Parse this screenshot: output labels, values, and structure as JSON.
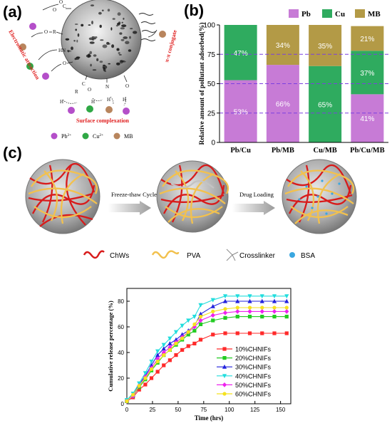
{
  "panel_a": {
    "label": "(a)",
    "mechanisms": {
      "electrostatic": "Electrostatic attraction",
      "pi": "π-π conjugate",
      "surface": "Surface complexation"
    },
    "groups": [
      "O",
      "C",
      "O",
      "O",
      "R",
      "HN",
      "O",
      "C",
      "O",
      "R",
      "H",
      "N",
      "H",
      "O",
      "H",
      "H"
    ],
    "legend": [
      "Pb",
      "Cu",
      "MB"
    ],
    "legend_sup": [
      "2+",
      "2+",
      ""
    ],
    "colors": {
      "pb": "#b44fc9",
      "cu": "#2fa845",
      "mb": "#b8855d",
      "mech": "#e02020"
    }
  },
  "panel_b_label": "(b)",
  "panel_c": {
    "label": "(c)",
    "step1": "Freeze-thaw Cycle",
    "step2": "Drug Loading",
    "legend": [
      "ChWs",
      "PVA",
      "Crosslinker",
      "BSA"
    ]
  },
  "chart_data": [
    {
      "type": "bar",
      "stacked": true,
      "categories": [
        "Pb/Cu",
        "Pb/MB",
        "Cu/MB",
        "Pb/Cu/MB"
      ],
      "series": [
        {
          "name": "Pb",
          "values": [
            53,
            66,
            0,
            41
          ],
          "labels": [
            "53%",
            "66%",
            "",
            "41%"
          ],
          "color": "#c77bd6"
        },
        {
          "name": "Cu",
          "values": [
            47,
            0,
            65,
            37
          ],
          "labels": [
            "47%",
            "",
            "65%",
            "37%"
          ],
          "color": "#2fab5f"
        },
        {
          "name": "MB",
          "values": [
            0,
            34,
            35,
            21
          ],
          "labels": [
            "",
            "34%",
            "35%",
            "21%"
          ],
          "color": "#b39a46"
        }
      ],
      "ylabel": "Relative amount of pollutant adsorbed(%)",
      "ylim": [
        0,
        100
      ],
      "yticks": [
        0,
        25,
        50,
        75,
        100
      ],
      "reference_lines": [
        25,
        50,
        75
      ],
      "reference_color": "#7b3fe0",
      "legend_position": "top"
    },
    {
      "type": "line",
      "xlabel": "Time (hrs)",
      "ylabel": "Cumulative release percentage (%)",
      "xlim": [
        0,
        160
      ],
      "ylim": [
        0,
        90
      ],
      "xticks": [
        0,
        25,
        50,
        75,
        100,
        125,
        150
      ],
      "yticks": [
        0,
        20,
        40,
        60,
        80
      ],
      "x": [
        0,
        6,
        12,
        18,
        24,
        30,
        36,
        42,
        48,
        54,
        60,
        66,
        72,
        84,
        96,
        108,
        120,
        132,
        144,
        156
      ],
      "series": [
        {
          "name": "10%CHNIFs",
          "color": "#ff2a2a",
          "marker": "square",
          "values": [
            2,
            5,
            11,
            15,
            20,
            25,
            30,
            34,
            38,
            42,
            45,
            47,
            50,
            54,
            55,
            55,
            55,
            55,
            55,
            55
          ]
        },
        {
          "name": "20%CHNIFs",
          "color": "#22cc22",
          "marker": "square",
          "values": [
            2,
            6,
            13,
            19,
            26,
            32,
            38,
            42,
            46,
            50,
            54,
            57,
            62,
            65,
            67,
            68,
            68,
            68,
            68,
            68
          ]
        },
        {
          "name": "30%CHNIFs",
          "color": "#2222dd",
          "marker": "triangle-up",
          "values": [
            3,
            7,
            15,
            22,
            30,
            38,
            43,
            47,
            50,
            54,
            57,
            61,
            70,
            76,
            80,
            80,
            80,
            80,
            80,
            80
          ]
        },
        {
          "name": "40%CHNIFs",
          "color": "#22dddd",
          "marker": "triangle-down",
          "values": [
            3,
            8,
            16,
            24,
            33,
            41,
            46,
            51,
            56,
            61,
            65,
            68,
            77,
            81,
            84,
            84,
            84,
            84,
            84,
            84
          ]
        },
        {
          "name": "50%CHNIFs",
          "color": "#ee22ee",
          "marker": "diamond",
          "values": [
            2,
            6,
            14,
            21,
            28,
            35,
            40,
            44,
            48,
            52,
            56,
            60,
            65,
            69,
            71,
            72,
            72,
            72,
            72,
            72
          ]
        },
        {
          "name": "60%CHNIFs",
          "color": "#f5e21f",
          "marker": "circle",
          "values": [
            2,
            7,
            14,
            20,
            27,
            33,
            38,
            42,
            47,
            51,
            56,
            62,
            68,
            72,
            74,
            75,
            75,
            75,
            75,
            75
          ]
        }
      ],
      "legend_position": "center-right"
    }
  ]
}
